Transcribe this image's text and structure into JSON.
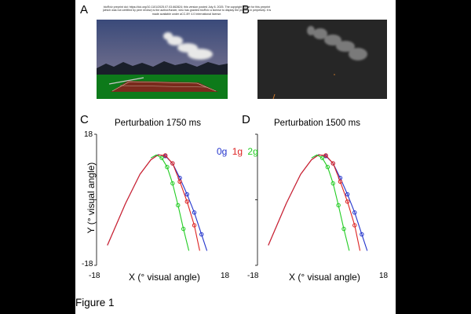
{
  "notice": {
    "line1": "bioRxiv preprint doi: https://doi.org/10.1101/2025.07.03.662824; this version posted July 8, 2025. The copyright holder for this preprint",
    "line2": "(which was not certified by peer review) is the author/funder, who has granted bioRxiv a license to display the preprint in perpetuity. It is",
    "line3": "made available under aCC-BY 4.0 International license."
  },
  "panels": {
    "a": "A",
    "b": "B",
    "c": "C",
    "d": "D"
  },
  "figure_caption": "Figure 1",
  "colors": {
    "g0": "#2233cc",
    "g1": "#dd2222",
    "g2": "#22cc22"
  },
  "legend": {
    "g0": "0g",
    "g1": "1g",
    "g2": "2g"
  },
  "chart_data": [
    {
      "type": "line",
      "title": "Perturbation 1750 ms",
      "xlabel": "X (° visual angle)",
      "ylabel": "Y (° visual angle)",
      "xlim": [
        -18,
        18
      ],
      "ylim": [
        -18,
        18
      ],
      "x_tick_labels": [
        "-18",
        "18"
      ],
      "y_tick_labels": [
        "18",
        "-18"
      ],
      "series": [
        {
          "name": "0g",
          "color": "#2233cc",
          "x": [
            -15,
            -10,
            -6,
            -3,
            -1,
            1,
            3,
            5,
            7,
            9,
            11,
            12.5
          ],
          "y": [
            -12.5,
            -1,
            7,
            11,
            12.4,
            12,
            10,
            6,
            1.5,
            -3.5,
            -9.5,
            -14
          ]
        },
        {
          "name": "1g",
          "color": "#dd2222",
          "x": [
            -15,
            -10,
            -6,
            -3,
            -1,
            1,
            3,
            5,
            7,
            9,
            10.5
          ],
          "y": [
            -12.5,
            -1,
            7,
            11,
            12.3,
            12.2,
            10,
            5,
            -0.5,
            -7,
            -14
          ]
        },
        {
          "name": "2g",
          "color": "#22cc22",
          "x": [
            -3,
            -1.5,
            0,
            1.5,
            3,
            4.5,
            6,
            7.5
          ],
          "y": [
            11.5,
            12.3,
            11.5,
            9,
            4.5,
            -1.5,
            -8,
            -14
          ]
        }
      ]
    },
    {
      "type": "line",
      "title": "Perturbation 1500 ms",
      "xlabel": "X (° visual angle)",
      "ylabel": "",
      "xlim": [
        -18,
        18
      ],
      "ylim": [
        -18,
        18
      ],
      "x_tick_labels": [
        "-18",
        "18"
      ],
      "y_tick_labels": [],
      "series": [
        {
          "name": "0g",
          "color": "#2233cc",
          "x": [
            -15,
            -10,
            -6,
            -3,
            -1,
            1,
            3,
            5,
            7,
            9,
            11,
            12.5
          ],
          "y": [
            -12.5,
            -1,
            7,
            11,
            12.4,
            12,
            10,
            6,
            1.5,
            -3.5,
            -9.5,
            -14
          ]
        },
        {
          "name": "1g",
          "color": "#dd2222",
          "x": [
            -15,
            -10,
            -6,
            -3,
            -1,
            1,
            3,
            5,
            7,
            9,
            10.5
          ],
          "y": [
            -12.5,
            -1,
            7,
            11,
            12.3,
            12.2,
            10,
            5,
            -0.5,
            -7,
            -14
          ]
        },
        {
          "name": "2g",
          "color": "#22cc22",
          "x": [
            -3,
            -1.5,
            0,
            1.5,
            3,
            4.5,
            6,
            7.5
          ],
          "y": [
            11.5,
            12.3,
            11.5,
            9,
            4.5,
            -1.5,
            -8,
            -14
          ]
        }
      ]
    }
  ]
}
